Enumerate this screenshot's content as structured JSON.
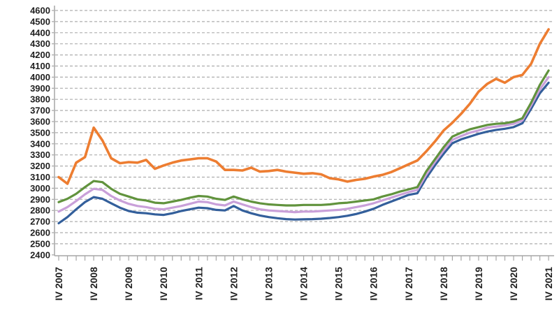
{
  "figure": {
    "background_color": "#ffffff",
    "axis_line_color": "#a6a6a6",
    "gridline_color": "#adadad",
    "tick_color": "#a6a6a6",
    "label_color": "#1f1f1f"
  },
  "chart_data": {
    "type": "line",
    "title": "",
    "xlabel": "",
    "ylabel": "",
    "ylim": [
      2400,
      4600
    ],
    "ytick_step": 100,
    "grid": "horizontal-dashed",
    "legend": "none",
    "y_tick_labels": [
      "4600",
      "4500",
      "4400",
      "4300",
      "4200",
      "4100",
      "4000",
      "3900",
      "3800",
      "3700",
      "3600",
      "3500",
      "3400",
      "3300",
      "3200",
      "3100",
      "3000",
      "2900",
      "2800",
      "2700",
      "2600",
      "2500",
      "2400"
    ],
    "visible_x_tick_labels": [
      "IV 2007",
      "IV 2008",
      "IV 2009",
      "IV 2010",
      "IV 2011",
      "IV 2012",
      "IV 2013",
      "IV 2014",
      "IV 2015",
      "IV 2016",
      "IV 2017",
      "IV 2018",
      "IV 2019",
      "IV 2020",
      "IV 2021"
    ],
    "x": [
      "IV 2007",
      "I 2008",
      "II 2008",
      "III 2008",
      "IV 2008",
      "I 2009",
      "II 2009",
      "III 2009",
      "IV 2009",
      "I 2010",
      "II 2010",
      "III 2010",
      "IV 2010",
      "I 2011",
      "II 2011",
      "III 2011",
      "IV 2011",
      "I 2012",
      "II 2012",
      "III 2012",
      "IV 2012",
      "I 2013",
      "II 2013",
      "III 2013",
      "IV 2013",
      "I 2014",
      "II 2014",
      "III 2014",
      "IV 2014",
      "I 2015",
      "II 2015",
      "III 2015",
      "IV 2015",
      "I 2016",
      "II 2016",
      "III 2016",
      "IV 2016",
      "I 2017",
      "II 2017",
      "III 2017",
      "IV 2017",
      "I 2018",
      "II 2018",
      "III 2018",
      "IV 2018",
      "I 2019",
      "II 2019",
      "III 2019",
      "IV 2019",
      "I 2020",
      "II 2020",
      "III 2020",
      "IV 2020",
      "I 2021",
      "II 2021",
      "III 2021",
      "IV 2021"
    ],
    "series": [
      {
        "name": "blue-series",
        "color": "#335f9b",
        "line_width": 3.2,
        "values": [
          2685,
          2740,
          2810,
          2875,
          2920,
          2905,
          2865,
          2825,
          2795,
          2780,
          2775,
          2765,
          2760,
          2775,
          2795,
          2810,
          2825,
          2820,
          2805,
          2800,
          2840,
          2800,
          2775,
          2755,
          2740,
          2730,
          2722,
          2718,
          2720,
          2722,
          2726,
          2732,
          2740,
          2752,
          2768,
          2790,
          2815,
          2850,
          2880,
          2910,
          2940,
          2955,
          3090,
          3205,
          3310,
          3405,
          3440,
          3465,
          3490,
          3510,
          3525,
          3535,
          3550,
          3585,
          3715,
          3855,
          3950
        ]
      },
      {
        "name": "violet-series",
        "color": "#c9a0d9",
        "line_width": 3.2,
        "values": [
          2790,
          2830,
          2885,
          2945,
          2995,
          2985,
          2930,
          2890,
          2860,
          2840,
          2830,
          2815,
          2810,
          2825,
          2840,
          2860,
          2880,
          2875,
          2855,
          2845,
          2880,
          2855,
          2830,
          2810,
          2800,
          2795,
          2790,
          2785,
          2790,
          2790,
          2795,
          2800,
          2805,
          2815,
          2830,
          2845,
          2865,
          2890,
          2915,
          2940,
          2965,
          2985,
          3120,
          3235,
          3340,
          3435,
          3470,
          3500,
          3520,
          3545,
          3555,
          3565,
          3580,
          3610,
          3745,
          3890,
          4000
        ]
      },
      {
        "name": "green-series",
        "color": "#61933d",
        "line_width": 3.2,
        "values": [
          2875,
          2905,
          2950,
          3010,
          3065,
          3055,
          2995,
          2950,
          2925,
          2900,
          2890,
          2870,
          2865,
          2880,
          2895,
          2915,
          2930,
          2925,
          2905,
          2895,
          2925,
          2900,
          2880,
          2865,
          2855,
          2850,
          2845,
          2845,
          2850,
          2850,
          2850,
          2855,
          2865,
          2870,
          2880,
          2890,
          2900,
          2925,
          2945,
          2970,
          2990,
          3010,
          3150,
          3260,
          3370,
          3465,
          3500,
          3530,
          3550,
          3570,
          3580,
          3585,
          3600,
          3630,
          3770,
          3930,
          4060
        ]
      },
      {
        "name": "orange-series",
        "color": "#ed7d31",
        "line_width": 3.6,
        "values": [
          3100,
          3040,
          3230,
          3280,
          3545,
          3430,
          3270,
          3225,
          3235,
          3230,
          3255,
          3175,
          3205,
          3230,
          3250,
          3260,
          3270,
          3270,
          3240,
          3165,
          3165,
          3160,
          3185,
          3150,
          3155,
          3165,
          3150,
          3140,
          3130,
          3135,
          3125,
          3090,
          3080,
          3060,
          3075,
          3085,
          3105,
          3120,
          3145,
          3180,
          3215,
          3250,
          3330,
          3420,
          3520,
          3590,
          3670,
          3760,
          3870,
          3940,
          3985,
          3950,
          4000,
          4020,
          4120,
          4300,
          4430
        ]
      }
    ]
  }
}
